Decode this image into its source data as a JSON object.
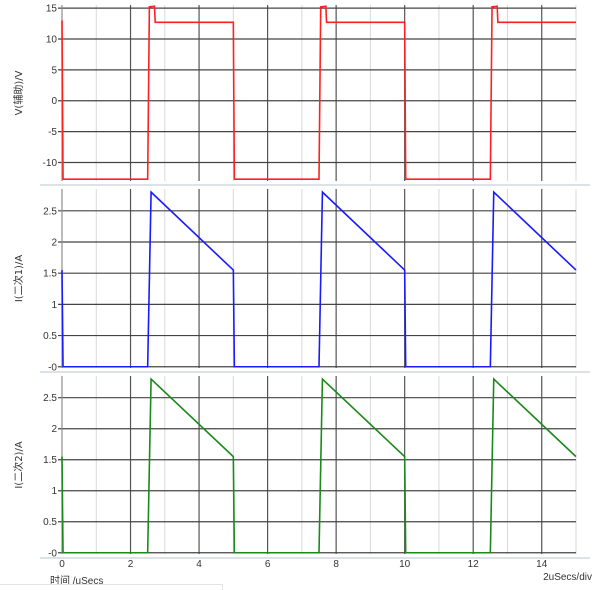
{
  "chart_data": [
    {
      "type": "line",
      "ylabel": "V(辅助)/V",
      "yticks": [
        15,
        10,
        5,
        0,
        -5,
        -10
      ],
      "ytick_labels": [
        "15",
        "10",
        "5",
        "0",
        "-5",
        "-10"
      ],
      "ylim": [
        -13,
        15.5
      ],
      "xlim": [
        0,
        15
      ],
      "grid": true,
      "color": "#ff2020",
      "points": [
        [
          0,
          13
        ],
        [
          0.03,
          -12.7
        ],
        [
          2.5,
          -12.7
        ],
        [
          2.55,
          15.2
        ],
        [
          2.7,
          15.3
        ],
        [
          2.72,
          12.7
        ],
        [
          5,
          12.7
        ],
        [
          5.03,
          -12.7
        ],
        [
          7.5,
          -12.7
        ],
        [
          7.55,
          15.2
        ],
        [
          7.7,
          15.3
        ],
        [
          7.72,
          12.7
        ],
        [
          10,
          12.7
        ],
        [
          10.03,
          -12.7
        ],
        [
          12.5,
          -12.7
        ],
        [
          12.55,
          15.2
        ],
        [
          12.7,
          15.3
        ],
        [
          12.72,
          12.7
        ],
        [
          15,
          12.7
        ]
      ]
    },
    {
      "type": "line",
      "ylabel": "I(二次1)/A",
      "yticks": [
        2.5,
        2,
        1.5,
        1,
        0.5,
        0
      ],
      "ytick_labels": [
        "2.5",
        "2",
        "1.5",
        "1",
        "0.5",
        "-0"
      ],
      "ylim": [
        -0.02,
        2.85
      ],
      "xlim": [
        0,
        15
      ],
      "grid": true,
      "color": "#1a1aff",
      "points": [
        [
          0,
          1.55
        ],
        [
          0.03,
          0
        ],
        [
          2.5,
          0
        ],
        [
          2.6,
          2.8
        ],
        [
          5,
          1.55
        ],
        [
          5.03,
          0
        ],
        [
          7.5,
          0
        ],
        [
          7.6,
          2.8
        ],
        [
          10,
          1.55
        ],
        [
          10.03,
          0
        ],
        [
          12.5,
          0
        ],
        [
          12.6,
          2.8
        ],
        [
          15,
          1.55
        ]
      ]
    },
    {
      "type": "line",
      "ylabel": "I(二次2)/A",
      "yticks": [
        2.5,
        2,
        1.5,
        1,
        0.5,
        0
      ],
      "ytick_labels": [
        "2.5",
        "2",
        "1.5",
        "1",
        "0.5",
        "-0"
      ],
      "ylim": [
        -0.02,
        2.85
      ],
      "xlim": [
        0,
        15
      ],
      "grid": true,
      "color": "#1a8a1a",
      "points": [
        [
          0,
          1.55
        ],
        [
          0.03,
          0
        ],
        [
          2.5,
          0
        ],
        [
          2.6,
          2.8
        ],
        [
          5,
          1.55
        ],
        [
          5.03,
          0
        ],
        [
          7.5,
          0
        ],
        [
          7.6,
          2.8
        ],
        [
          10,
          1.55
        ],
        [
          10.03,
          0
        ],
        [
          12.5,
          0
        ],
        [
          12.6,
          2.8
        ],
        [
          15,
          1.55
        ]
      ]
    }
  ],
  "xticks": [
    0,
    2,
    4,
    6,
    8,
    10,
    12,
    14
  ],
  "xtick_labels": [
    "0",
    "2",
    "4",
    "6",
    "8",
    "10",
    "12",
    "14"
  ],
  "xlabel": "时间  /uSecs",
  "scale_label": "2uSecs/div"
}
